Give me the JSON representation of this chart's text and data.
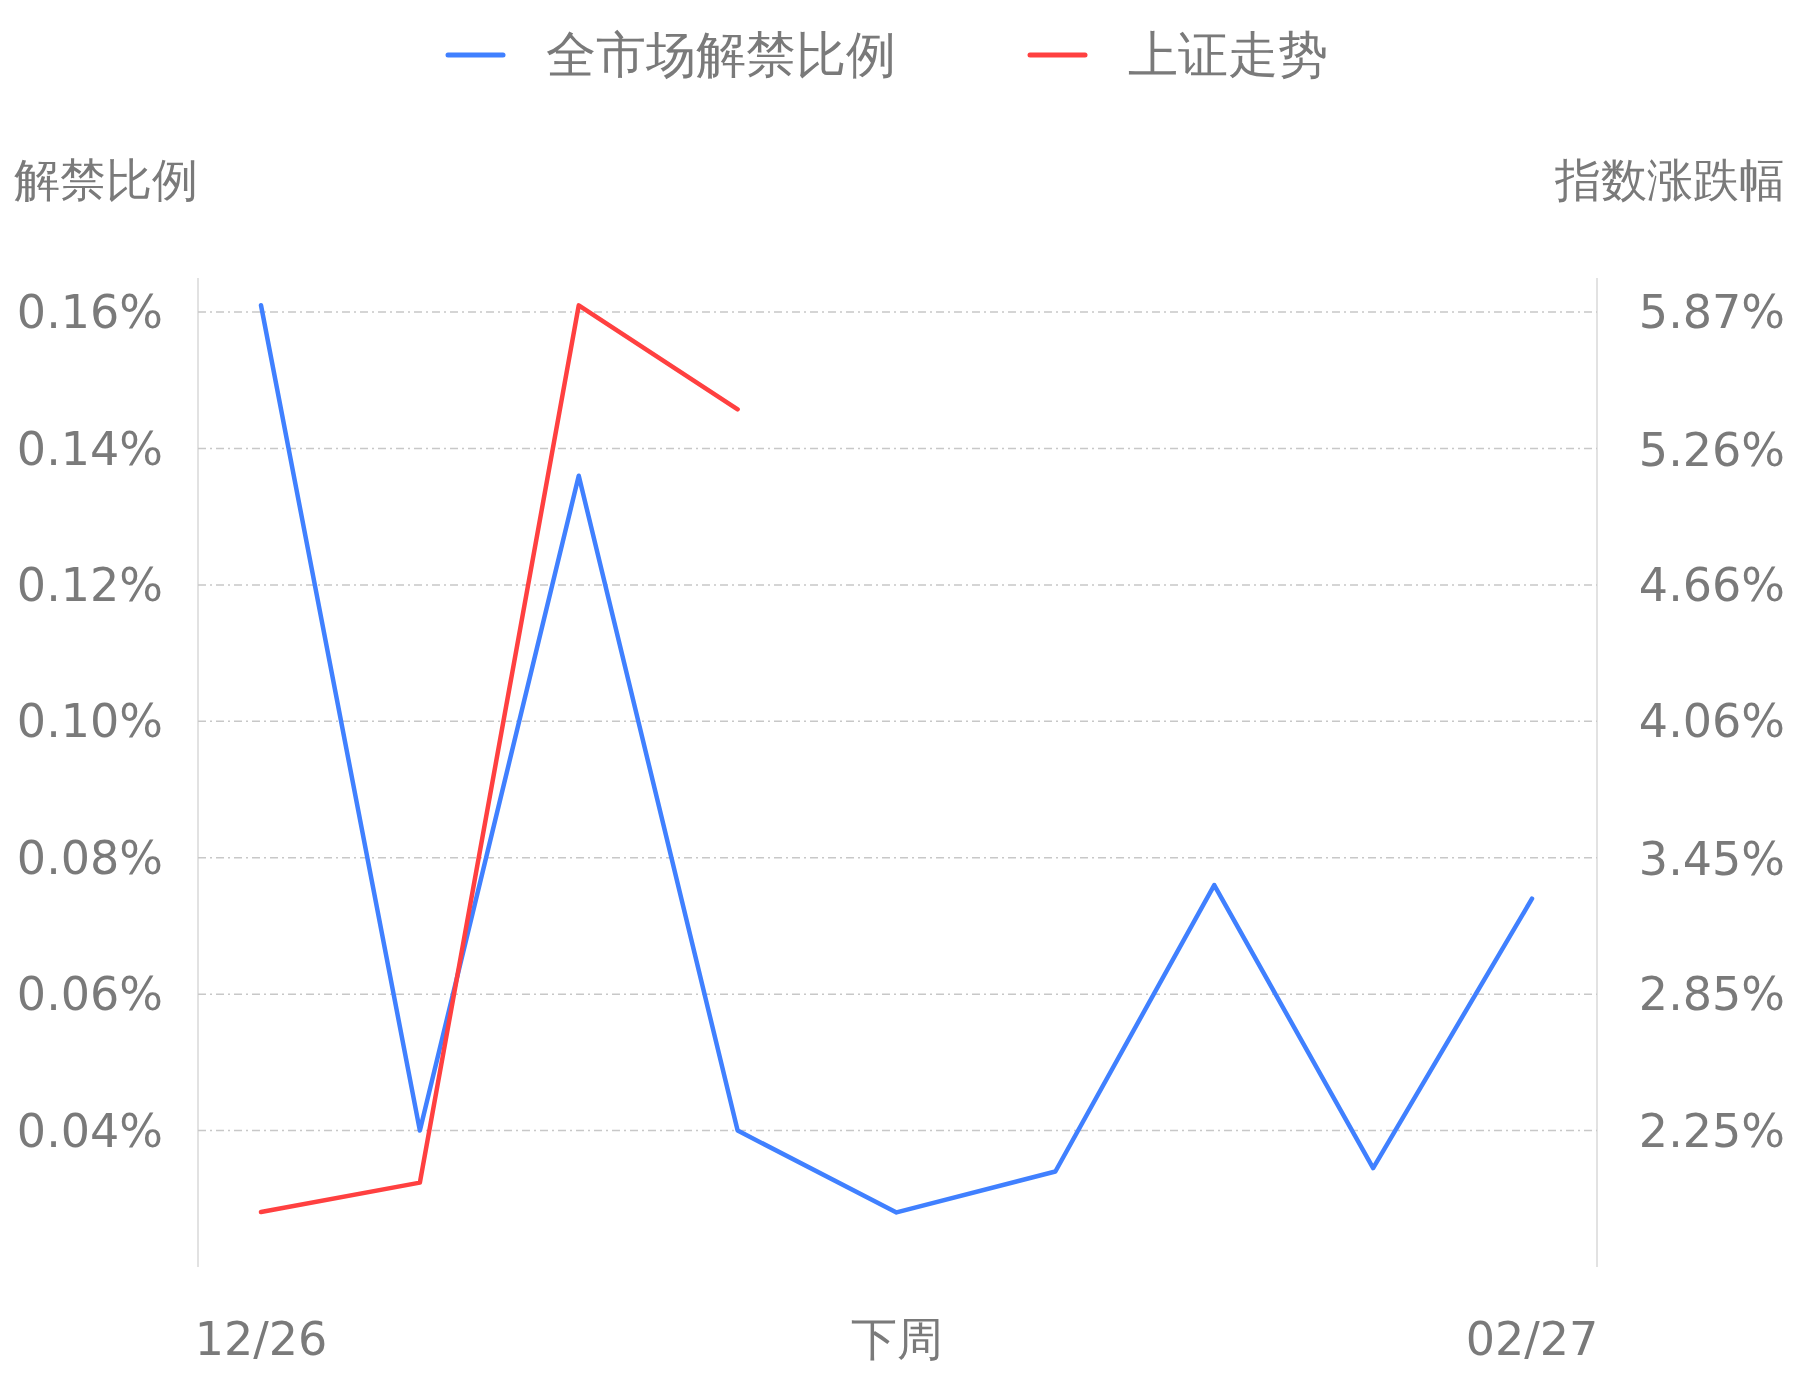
{
  "chart_data": {
    "type": "line",
    "ylabel": "解禁比例",
    "y2label": "指数涨跌幅",
    "categories": [
      "12/26",
      null,
      null,
      null,
      "下周",
      null,
      null,
      null,
      "02/27"
    ],
    "series": [
      {
        "name": "全市场解禁比例",
        "color": "#4080ff",
        "values": [
          0.161,
          0.04,
          0.136,
          0.04,
          0.028,
          0.034,
          0.076,
          0.0345,
          0.074
        ]
      },
      {
        "name": "上证走势",
        "color": "#ff4040",
        "axis": "y2",
        "values": [
          1.89,
          2.02,
          5.9,
          5.44,
          null,
          null,
          null,
          null,
          null
        ]
      }
    ],
    "yticks": [
      {
        "value": 0.04,
        "label": "0.04%"
      },
      {
        "value": 0.06,
        "label": "0.06%"
      },
      {
        "value": 0.08,
        "label": "0.08%"
      },
      {
        "value": 0.1,
        "label": "0.10%"
      },
      {
        "value": 0.12,
        "label": "0.12%"
      },
      {
        "value": 0.14,
        "label": "0.14%"
      },
      {
        "value": 0.16,
        "label": "0.16%"
      }
    ],
    "ylim": [
      0.02,
      0.165
    ],
    "y2lim": [
      1.647,
      6.021
    ],
    "y2ticks": [
      {
        "value": 2.25,
        "label": "2.25%"
      },
      {
        "value": 2.8533,
        "label": "2.85%"
      },
      {
        "value": 3.45,
        "label": "3.45%"
      },
      {
        "value": 4.06,
        "label": "4.06%"
      },
      {
        "value": 4.6633,
        "label": "4.66%"
      },
      {
        "value": 5.26,
        "label": "5.26%"
      },
      {
        "value": 5.87,
        "label": "5.87%"
      }
    ],
    "grid": "y",
    "legend": "top"
  }
}
